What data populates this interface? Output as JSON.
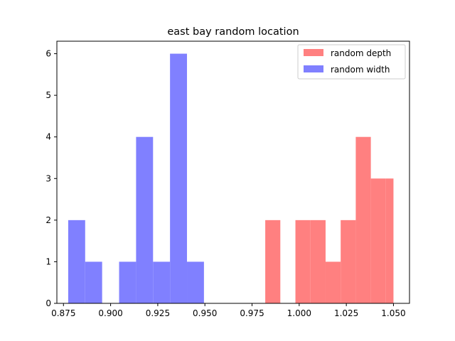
{
  "chart_data": {
    "type": "bar",
    "title": "east bay random location",
    "xlabel": "",
    "ylabel": "",
    "xlim": [
      0.8715,
      1.0585
    ],
    "ylim": [
      0,
      6.3
    ],
    "xticks": [
      0.875,
      0.9,
      0.925,
      0.95,
      0.975,
      1.0,
      1.025,
      1.05
    ],
    "xtick_labels": [
      "0.875",
      "0.900",
      "0.925",
      "0.950",
      "0.975",
      "1.000",
      "1.025",
      "1.050"
    ],
    "yticks": [
      0,
      1,
      2,
      3,
      4,
      5,
      6
    ],
    "ytick_labels": [
      "0",
      "1",
      "2",
      "3",
      "4",
      "5",
      "6"
    ],
    "grid": false,
    "legend_position": "top-right",
    "series": [
      {
        "name": "random depth",
        "color": "#ff8080",
        "bins": [
          [
            0.982,
            0.99,
            2
          ],
          [
            0.99,
            0.998,
            0
          ],
          [
            0.998,
            1.006,
            2
          ],
          [
            1.006,
            1.014,
            2
          ],
          [
            1.014,
            1.022,
            1
          ],
          [
            1.022,
            1.03,
            2
          ],
          [
            1.03,
            1.038,
            4
          ],
          [
            1.038,
            1.046,
            3
          ],
          [
            1.046,
            1.05,
            3
          ]
        ]
      },
      {
        "name": "random width",
        "color": "#8080ff",
        "bins": [
          [
            0.8775,
            0.8865,
            2
          ],
          [
            0.8865,
            0.8955,
            1
          ],
          [
            0.8955,
            0.9045,
            0
          ],
          [
            0.9045,
            0.9135,
            1
          ],
          [
            0.9135,
            0.9225,
            4
          ],
          [
            0.9225,
            0.9315,
            1
          ],
          [
            0.9315,
            0.9405,
            6
          ],
          [
            0.9405,
            0.9495,
            1
          ]
        ]
      }
    ]
  }
}
